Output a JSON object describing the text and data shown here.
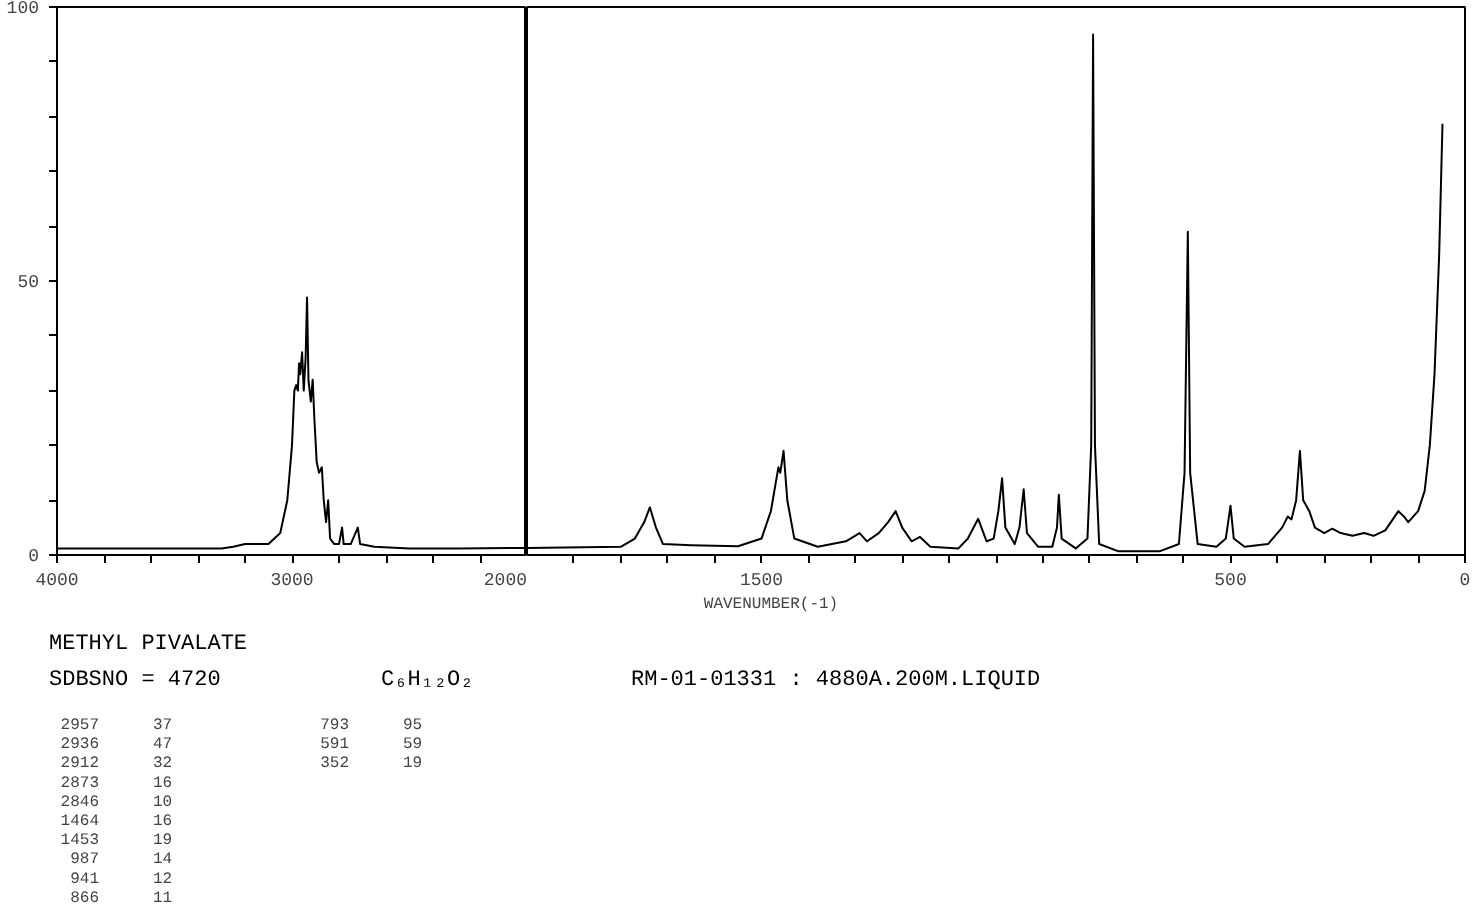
{
  "chart_data": [
    {
      "type": "line",
      "title": "METHYL PIVALATE",
      "annotations": [
        "SDBSNO = 4720",
        "C₆H₁₂O₂",
        "RM-01-01331 : 4880A.200M.LIQUID",
        "2957 37",
        "2936 47",
        "2912 32",
        "2873 16",
        "2846 10",
        "1464 16",
        "1453 19",
        "987 14",
        "941 12",
        "866 11",
        "793 95",
        "591 59",
        "352 19"
      ],
      "xlim": [
        4000,
        2000
      ],
      "xticks": [
        4000,
        {
          "value": 3800,
          "label": null
        },
        {
          "value": 3600,
          "label": null
        },
        {
          "value": 3400,
          "label": null
        },
        {
          "value": 3200,
          "label": null
        },
        3000,
        {
          "value": 2800,
          "label": null
        },
        {
          "value": 2600,
          "label": null
        },
        {
          "value": 2400,
          "label": null
        },
        {
          "value": 2200,
          "label": null
        },
        2000
      ],
      "ylim": [
        0,
        100
      ],
      "yticks": [
        0,
        {
          "value": 10,
          "label": null
        },
        {
          "value": 20,
          "label": null
        },
        {
          "value": 30,
          "label": null
        },
        {
          "value": 40,
          "label": null
        },
        50,
        {
          "value": 60,
          "label": null
        },
        {
          "value": 70,
          "label": null
        },
        {
          "value": 80,
          "label": null
        },
        {
          "value": 90,
          "label": null
        },
        100
      ],
      "grid": false,
      "series": [
        {
          "color": "#000000",
          "x": [
            4000,
            3300,
            3250,
            3200,
            3100,
            3050,
            3020,
            3000,
            2990,
            2982,
            2975,
            2970,
            2965,
            2957,
            2950,
            2942,
            2936,
            2930,
            2920,
            2912,
            2905,
            2895,
            2885,
            2873,
            2865,
            2855,
            2846,
            2838,
            2820,
            2800,
            2787,
            2780,
            2750,
            2720,
            2710,
            2650,
            2500,
            2300,
            2000
          ],
          "values": [
            1.2,
            1.2,
            1.5,
            2,
            2,
            4,
            10,
            20,
            30,
            31,
            30,
            35,
            33,
            37,
            30,
            36,
            47,
            32,
            28,
            32,
            25,
            17,
            15,
            16,
            10,
            6,
            10,
            3,
            2,
            2,
            5,
            2,
            2,
            5,
            2,
            1.5,
            1.2,
            1.2,
            1.3
          ]
        }
      ]
    },
    {
      "type": "line",
      "tick_labels": "x",
      "xlabel": "WAVENUMBER(-1)",
      "xlim": [
        2000,
        0
      ],
      "xticks": [
        {
          "value": 1900,
          "label": null
        },
        {
          "value": 1800,
          "label": null
        },
        {
          "value": 1700,
          "label": null
        },
        {
          "value": 1600,
          "label": null
        },
        1500,
        {
          "value": 1400,
          "label": null
        },
        {
          "value": 1300,
          "label": null
        },
        {
          "value": 1200,
          "label": null
        },
        {
          "value": 1100,
          "label": null
        },
        {
          "value": 1000,
          "label": null
        },
        {
          "value": 900,
          "label": null
        },
        {
          "value": 800,
          "label": null
        },
        {
          "value": 700,
          "label": null
        },
        {
          "value": 600,
          "label": null
        },
        500,
        {
          "value": 400,
          "label": null
        },
        {
          "value": 300,
          "label": null
        },
        {
          "value": 200,
          "label": null
        },
        {
          "value": 100,
          "label": null
        },
        0
      ],
      "ylim": [
        0,
        100
      ],
      "yticks": [
        0,
        50,
        100
      ],
      "grid": false,
      "series": [
        {
          "color": "#000000",
          "x": [
            2000,
            1800,
            1770,
            1750,
            1738,
            1725,
            1710,
            1650,
            1550,
            1500,
            1480,
            1464,
            1460,
            1453,
            1445,
            1430,
            1380,
            1320,
            1291,
            1275,
            1250,
            1230,
            1214,
            1200,
            1180,
            1162,
            1140,
            1080,
            1060,
            1038,
            1020,
            1005,
            995,
            987,
            980,
            960,
            950,
            941,
            934,
            910,
            880,
            870,
            866,
            860,
            830,
            805,
            797,
            793,
            789,
            780,
            740,
            650,
            610,
            598,
            591,
            586,
            570,
            530,
            510,
            500,
            493,
            470,
            420,
            390,
            378,
            370,
            360,
            352,
            345,
            332,
            320,
            300,
            283,
            265,
            240,
            215,
            195,
            170,
            142,
            130,
            121,
            100,
            86,
            75,
            65,
            55,
            48
          ],
          "values": [
            1.3,
            1.5,
            3,
            6,
            8.7,
            5,
            2,
            1.8,
            1.6,
            3,
            8,
            16,
            15,
            19,
            10,
            3,
            1.5,
            2.5,
            4,
            2.5,
            4,
            6,
            8,
            5,
            2.5,
            3.3,
            1.5,
            1.2,
            3,
            6.6,
            2.5,
            3,
            8,
            14,
            5,
            2,
            5,
            12,
            4,
            1.5,
            1.5,
            5,
            11,
            3,
            1.2,
            3,
            20,
            95,
            20,
            2,
            0.7,
            0.7,
            2,
            15,
            59,
            15,
            2,
            1.5,
            3,
            9,
            3,
            1.5,
            2,
            5,
            7,
            6.5,
            10,
            19,
            10,
            8,
            5,
            4,
            4.8,
            4,
            3.5,
            4,
            3.5,
            4.5,
            8,
            7,
            6,
            8,
            11.7,
            20,
            33,
            55,
            78.7
          ]
        }
      ]
    }
  ]
}
